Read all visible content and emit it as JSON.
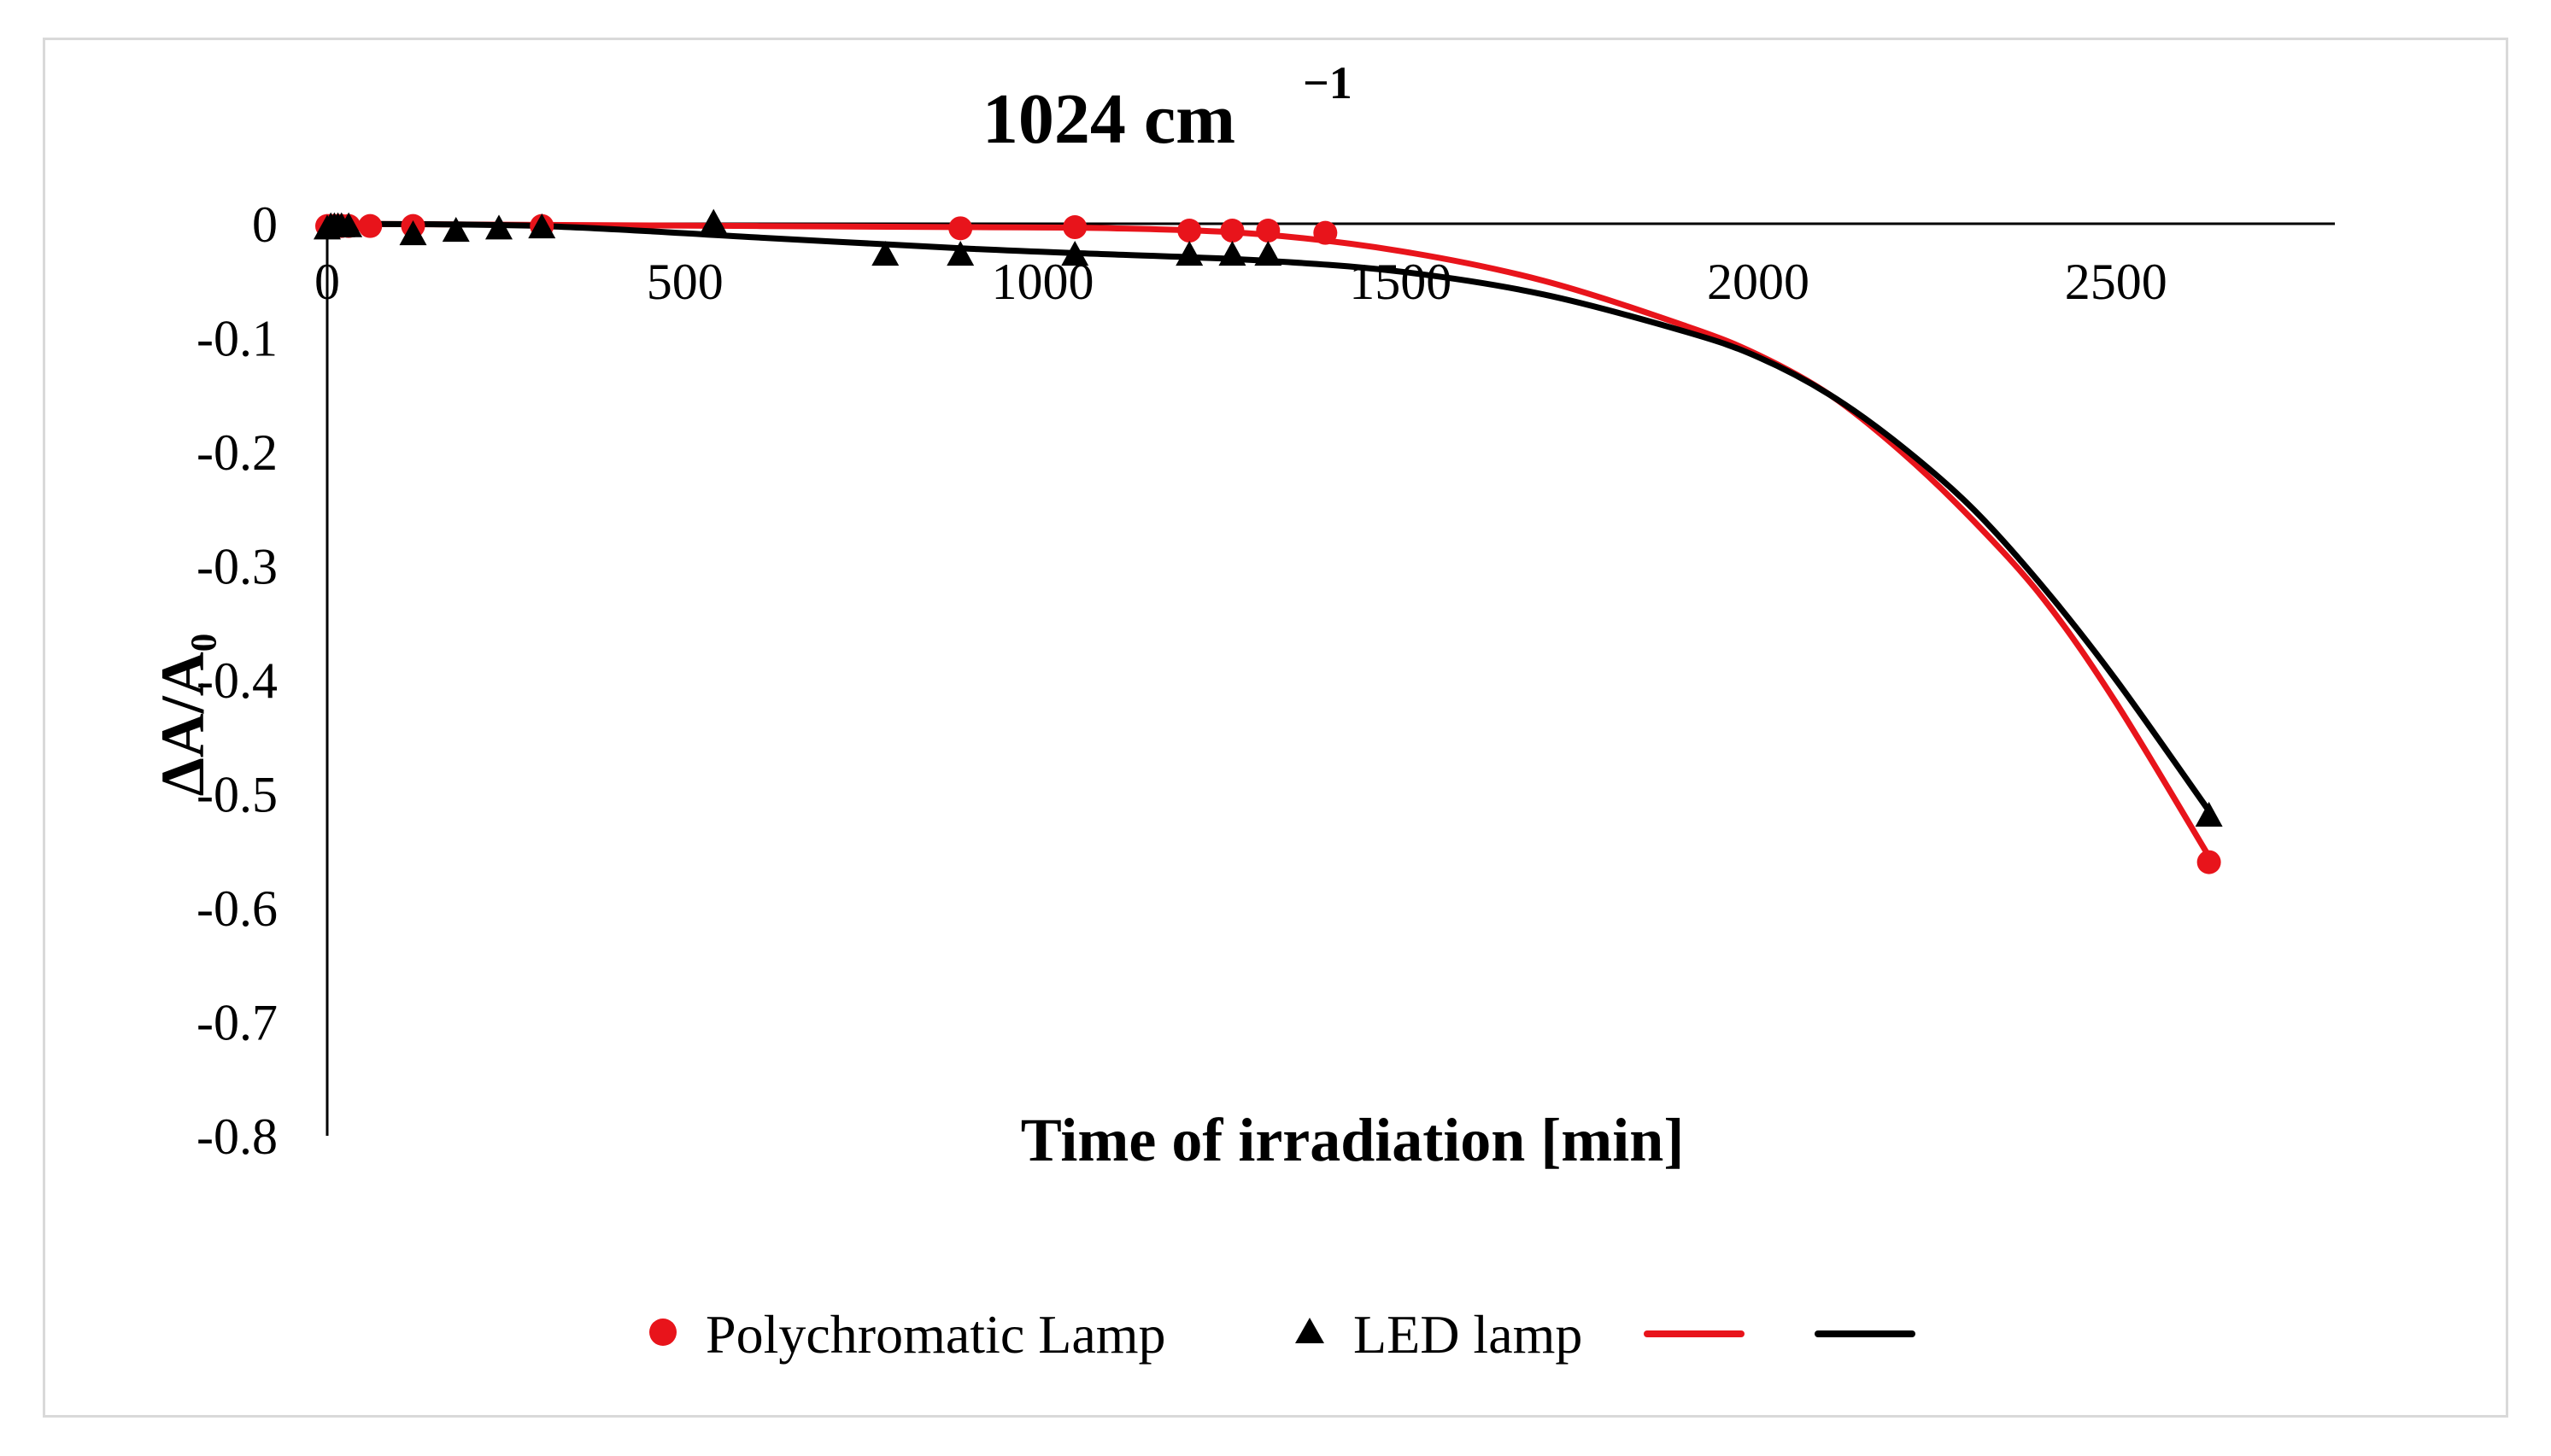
{
  "chart_data": {
    "type": "scatter",
    "title": "1024 cm",
    "title_superscript": "−1",
    "xlabel": "Time of irradiation [min]",
    "ylabel": "ΔA/A₀",
    "xlim": [
      0,
      2800
    ],
    "ylim": [
      -0.8,
      0
    ],
    "x_ticks": [
      0,
      500,
      1000,
      1500,
      2000,
      2500
    ],
    "x_tick_labels": [
      "0",
      "500",
      "1000",
      "1500",
      "2000",
      "2500"
    ],
    "y_ticks": [
      0,
      -0.1,
      -0.2,
      -0.3,
      -0.4,
      -0.5,
      -0.6,
      -0.7,
      -0.8
    ],
    "y_tick_labels": [
      "0",
      "-0.1",
      "-0.2",
      "-0.3",
      "-0.4",
      "-0.5",
      "-0.6",
      "-0.7",
      "-0.8"
    ],
    "grid": false,
    "legend_position": "bottom",
    "series": [
      {
        "name": "Polychromatic Lamp",
        "kind": "scatter",
        "marker": "circle",
        "color": "#e8141b",
        "x": [
          0,
          5,
          10,
          15,
          20,
          30,
          60,
          120,
          300,
          885,
          1045,
          1205,
          1265,
          1315,
          1395,
          2630
        ],
        "y": [
          -0.002,
          -0.002,
          -0.002,
          -0.002,
          -0.002,
          -0.002,
          -0.002,
          -0.002,
          -0.002,
          -0.004,
          -0.003,
          -0.006,
          -0.006,
          -0.006,
          -0.008,
          -0.56
        ]
      },
      {
        "name": "LED lamp",
        "kind": "scatter",
        "marker": "triangle",
        "color": "#000000",
        "x": [
          0,
          5,
          10,
          15,
          20,
          30,
          120,
          180,
          240,
          300,
          540,
          780,
          885,
          1045,
          1205,
          1265,
          1315,
          2630
        ],
        "y": [
          -0.005,
          -0.003,
          -0.003,
          -0.003,
          -0.003,
          -0.003,
          -0.01,
          -0.007,
          -0.005,
          -0.004,
          0.0,
          -0.028,
          -0.028,
          -0.028,
          -0.028,
          -0.028,
          -0.028,
          -0.52
        ]
      },
      {
        "name": "",
        "kind": "line",
        "color": "#e8141b",
        "x": [
          0,
          300,
          600,
          900,
          1100,
          1300,
          1500,
          1700,
          1900,
          2000,
          2100,
          2200,
          2300,
          2400,
          2500,
          2630
        ],
        "y": [
          0,
          -0.001,
          -0.002,
          -0.003,
          -0.004,
          -0.009,
          -0.024,
          -0.05,
          -0.09,
          -0.115,
          -0.15,
          -0.2,
          -0.26,
          -0.33,
          -0.42,
          -0.555
        ]
      },
      {
        "name": "",
        "kind": "line",
        "color": "#000000",
        "x": [
          0,
          300,
          600,
          900,
          1100,
          1300,
          1500,
          1700,
          1900,
          2000,
          2100,
          2200,
          2300,
          2400,
          2500,
          2630
        ],
        "y": [
          0,
          -0.002,
          -0.012,
          -0.022,
          -0.027,
          -0.032,
          -0.042,
          -0.062,
          -0.095,
          -0.117,
          -0.15,
          -0.195,
          -0.25,
          -0.32,
          -0.4,
          -0.515
        ]
      }
    ]
  }
}
